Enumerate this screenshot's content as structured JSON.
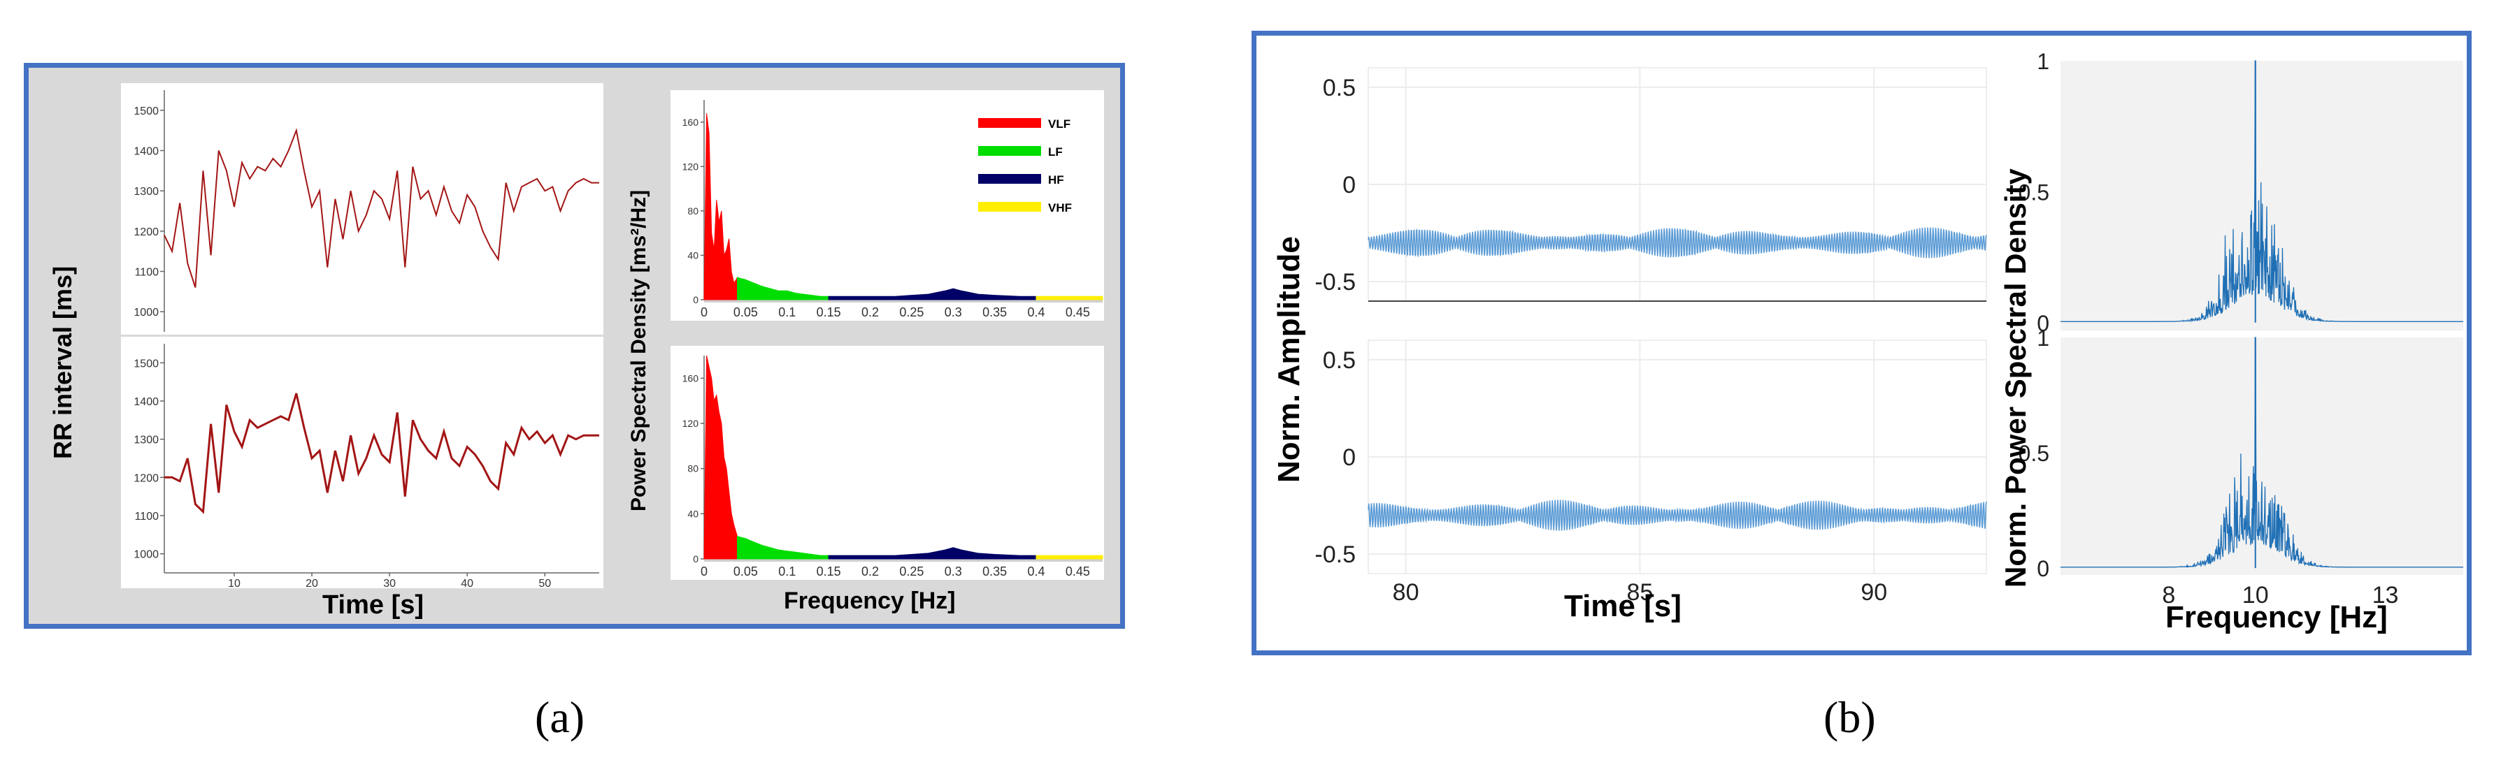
{
  "captions": {
    "a": "(a)",
    "b": "(b)"
  },
  "colors": {
    "frame": "#4472c4",
    "rr_line": "#a31515",
    "eeg": "#5b9bd5",
    "psd_b": "#1f6fb5",
    "VLF": "#ff0000",
    "LF": "#00dd00",
    "HF": "#000066",
    "VHF": "#ffee00"
  },
  "chart_data": [
    {
      "id": "a-rr",
      "type": "line",
      "xlabel": "Time [s]",
      "ylabel": "RR interval [ms]",
      "xlim": [
        1,
        57
      ],
      "ylim": [
        950,
        1550
      ],
      "xticks": [
        10,
        20,
        30,
        40,
        50
      ],
      "yticks": [
        1000,
        1100,
        1200,
        1300,
        1400,
        1500
      ],
      "panels": [
        {
          "name": "top",
          "x": [
            1,
            2,
            3,
            4,
            5,
            6,
            7,
            8,
            9,
            10,
            11,
            12,
            13,
            14,
            15,
            16,
            17,
            18,
            19,
            20,
            21,
            22,
            23,
            24,
            25,
            26,
            27,
            28,
            29,
            30,
            31,
            32,
            33,
            34,
            35,
            36,
            37,
            38,
            39,
            40,
            41,
            42,
            43,
            44,
            45,
            46,
            47,
            48,
            49,
            50,
            51,
            52,
            53,
            54,
            55,
            56,
            57
          ],
          "y": [
            1190,
            1150,
            1270,
            1120,
            1060,
            1350,
            1140,
            1400,
            1350,
            1260,
            1370,
            1330,
            1360,
            1350,
            1380,
            1360,
            1400,
            1450,
            1350,
            1260,
            1300,
            1110,
            1280,
            1180,
            1300,
            1200,
            1240,
            1300,
            1280,
            1230,
            1350,
            1110,
            1360,
            1280,
            1300,
            1240,
            1310,
            1250,
            1220,
            1290,
            1260,
            1200,
            1160,
            1130,
            1320,
            1250,
            1310,
            1320,
            1330,
            1300,
            1310,
            1250,
            1300,
            1320,
            1330,
            1320,
            1320
          ]
        },
        {
          "name": "bottom",
          "x": [
            1,
            2,
            3,
            4,
            5,
            6,
            7,
            8,
            9,
            10,
            11,
            12,
            13,
            14,
            15,
            16,
            17,
            18,
            19,
            20,
            21,
            22,
            23,
            24,
            25,
            26,
            27,
            28,
            29,
            30,
            31,
            32,
            33,
            34,
            35,
            36,
            37,
            38,
            39,
            40,
            41,
            42,
            43,
            44,
            45,
            46,
            47,
            48,
            49,
            50,
            51,
            52,
            53,
            54,
            55,
            56,
            57
          ],
          "y": [
            1200,
            1200,
            1190,
            1250,
            1130,
            1110,
            1340,
            1160,
            1390,
            1320,
            1280,
            1350,
            1330,
            1340,
            1350,
            1360,
            1350,
            1420,
            1330,
            1250,
            1270,
            1160,
            1270,
            1190,
            1310,
            1210,
            1250,
            1310,
            1260,
            1240,
            1370,
            1150,
            1350,
            1300,
            1270,
            1250,
            1320,
            1250,
            1230,
            1280,
            1260,
            1230,
            1190,
            1170,
            1290,
            1260,
            1330,
            1300,
            1320,
            1290,
            1310,
            1260,
            1310,
            1300,
            1310,
            1310,
            1310
          ]
        }
      ]
    },
    {
      "id": "a-psd",
      "type": "area",
      "xlabel": "Frequency [Hz]",
      "ylabel": "Power Spectral Density [ms²/Hz]",
      "xlim": [
        0,
        0.48
      ],
      "ylim": [
        0,
        180
      ],
      "xticks": [
        "0",
        "0.05",
        "0.1",
        "0.15",
        "0.2",
        "0.25",
        "0.3",
        "0.35",
        "0.4",
        "0.45"
      ],
      "yticks": [
        0,
        40,
        80,
        120,
        160
      ],
      "legend": {
        "position": "top-right",
        "entries": [
          "VLF",
          "LF",
          "HF",
          "VHF"
        ]
      },
      "bands": [
        {
          "name": "VLF",
          "range": [
            0,
            0.04
          ]
        },
        {
          "name": "LF",
          "range": [
            0.04,
            0.15
          ]
        },
        {
          "name": "HF",
          "range": [
            0.15,
            0.4
          ]
        },
        {
          "name": "VHF",
          "range": [
            0.4,
            0.48
          ]
        }
      ],
      "panels": [
        {
          "name": "top",
          "x": [
            0,
            0.003,
            0.006,
            0.009,
            0.012,
            0.015,
            0.018,
            0.021,
            0.024,
            0.027,
            0.03,
            0.033,
            0.036,
            0.04,
            0.05,
            0.06,
            0.07,
            0.08,
            0.09,
            0.1,
            0.11,
            0.12,
            0.13,
            0.14,
            0.15,
            0.17,
            0.2,
            0.23,
            0.25,
            0.27,
            0.29,
            0.3,
            0.31,
            0.33,
            0.35,
            0.38,
            0.4,
            0.42,
            0.45,
            0.48
          ],
          "y": [
            0,
            168,
            150,
            60,
            45,
            90,
            70,
            80,
            40,
            45,
            55,
            25,
            15,
            20,
            18,
            15,
            12,
            10,
            8,
            8,
            6,
            5,
            4,
            3,
            3,
            3,
            3,
            3,
            4,
            5,
            8,
            10,
            8,
            5,
            4,
            3,
            3,
            3,
            3,
            3
          ]
        },
        {
          "name": "bottom",
          "x": [
            0,
            0.003,
            0.006,
            0.009,
            0.012,
            0.015,
            0.018,
            0.021,
            0.024,
            0.027,
            0.03,
            0.033,
            0.036,
            0.04,
            0.05,
            0.06,
            0.07,
            0.08,
            0.09,
            0.1,
            0.11,
            0.12,
            0.13,
            0.14,
            0.15,
            0.17,
            0.2,
            0.23,
            0.25,
            0.27,
            0.29,
            0.3,
            0.31,
            0.33,
            0.35,
            0.38,
            0.4,
            0.42,
            0.45,
            0.48
          ],
          "y": [
            0,
            180,
            170,
            160,
            140,
            145,
            130,
            120,
            90,
            80,
            60,
            40,
            30,
            20,
            18,
            15,
            12,
            10,
            8,
            7,
            6,
            5,
            4,
            3,
            3,
            3,
            3,
            3,
            4,
            5,
            8,
            10,
            8,
            5,
            4,
            3,
            3,
            3,
            3,
            3
          ]
        }
      ]
    },
    {
      "id": "b-eeg",
      "type": "line",
      "xlabel": "Time [s]",
      "ylabel": "Norm. Amplitude",
      "xlim": [
        79.2,
        92.4
      ],
      "ylim": [
        -0.6,
        0.6
      ],
      "xticks": [
        80,
        85,
        90
      ],
      "yticks": [
        "0.5",
        "0",
        "-0.5"
      ],
      "signal": {
        "baseline": -0.3,
        "amplitude_range": [
          -0.38,
          -0.22
        ],
        "dominant_frequency_hz": 10
      },
      "panels": [
        {
          "name": "top"
        },
        {
          "name": "bottom"
        }
      ]
    },
    {
      "id": "b-psd",
      "type": "line",
      "xlabel": "Frequency [Hz]",
      "ylabel": "Norm. Power Spectral Density",
      "xlim": [
        5.5,
        14.8
      ],
      "ylim": [
        -0.03,
        1.0
      ],
      "xticks": [
        8,
        10,
        13
      ],
      "yticks": [
        "0",
        "0.5",
        "1"
      ],
      "peak": {
        "x": 10,
        "y": 1
      },
      "panels": [
        {
          "name": "top"
        },
        {
          "name": "bottom"
        }
      ]
    }
  ]
}
